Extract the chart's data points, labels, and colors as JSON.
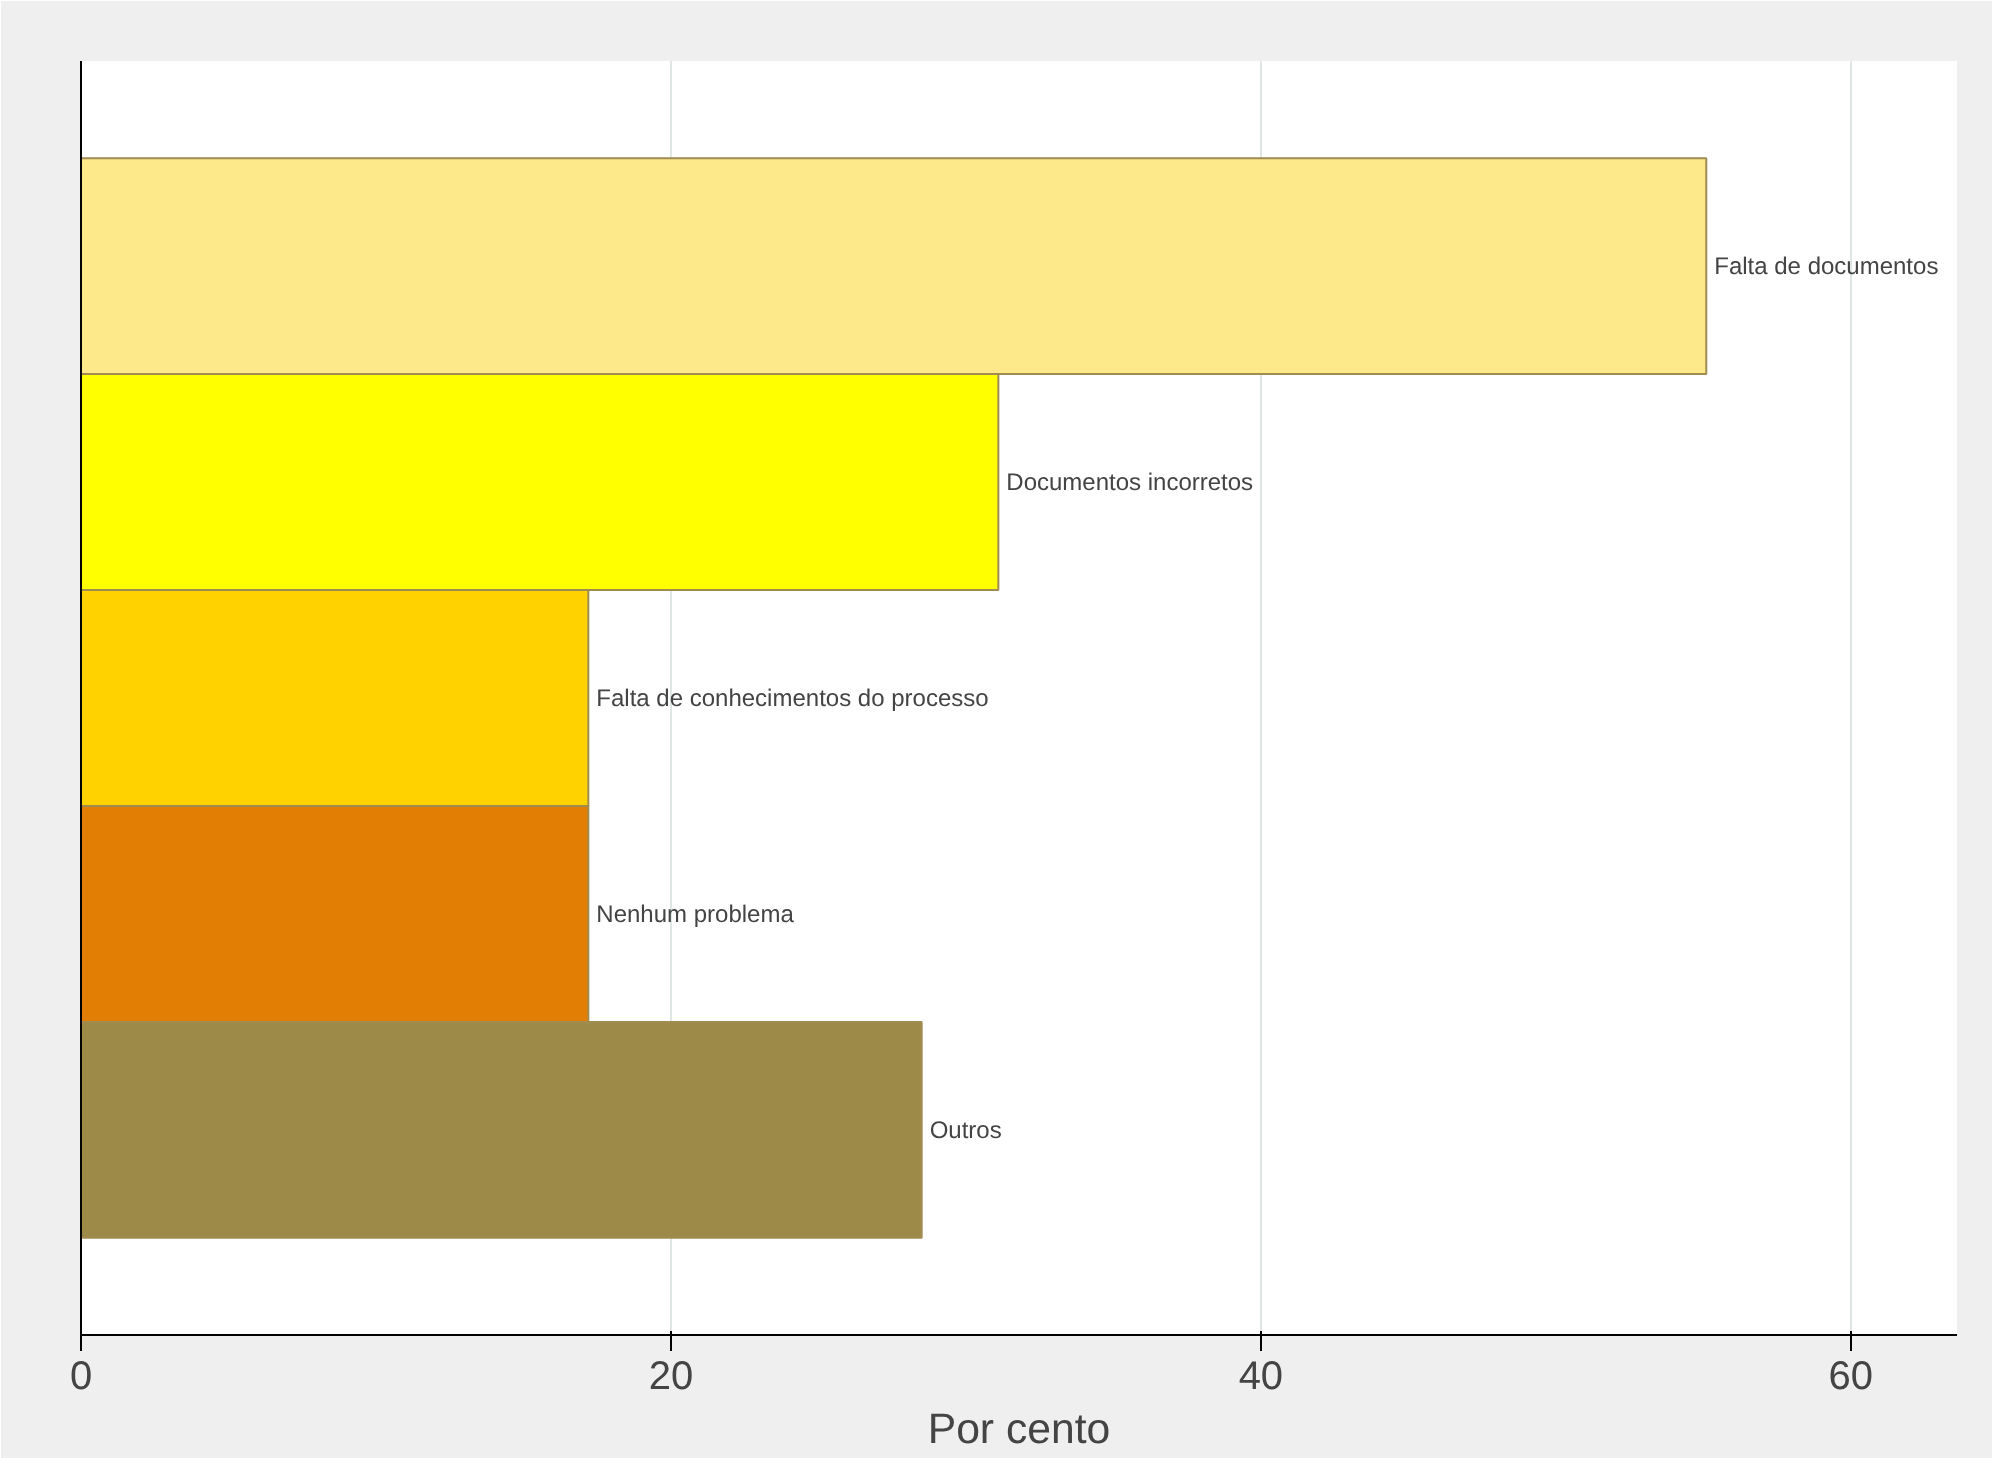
{
  "chart_data": {
    "type": "bar",
    "orientation": "horizontal",
    "xlabel": "Por cento",
    "categories": [
      "Falta de documentos",
      "Documentos incorretos",
      "Falta de conhecimentos do processo",
      "Nenhum problema",
      "Outros"
    ],
    "values": [
      55.1,
      31.1,
      17.2,
      17.2,
      28.5
    ],
    "colors": [
      "#fde88a",
      "#ffff00",
      "#ffd200",
      "#e37e05",
      "#9e8a48"
    ],
    "xlim": [
      0,
      63.6
    ],
    "xticks": [
      0,
      20,
      40,
      60
    ],
    "grid": "x"
  }
}
